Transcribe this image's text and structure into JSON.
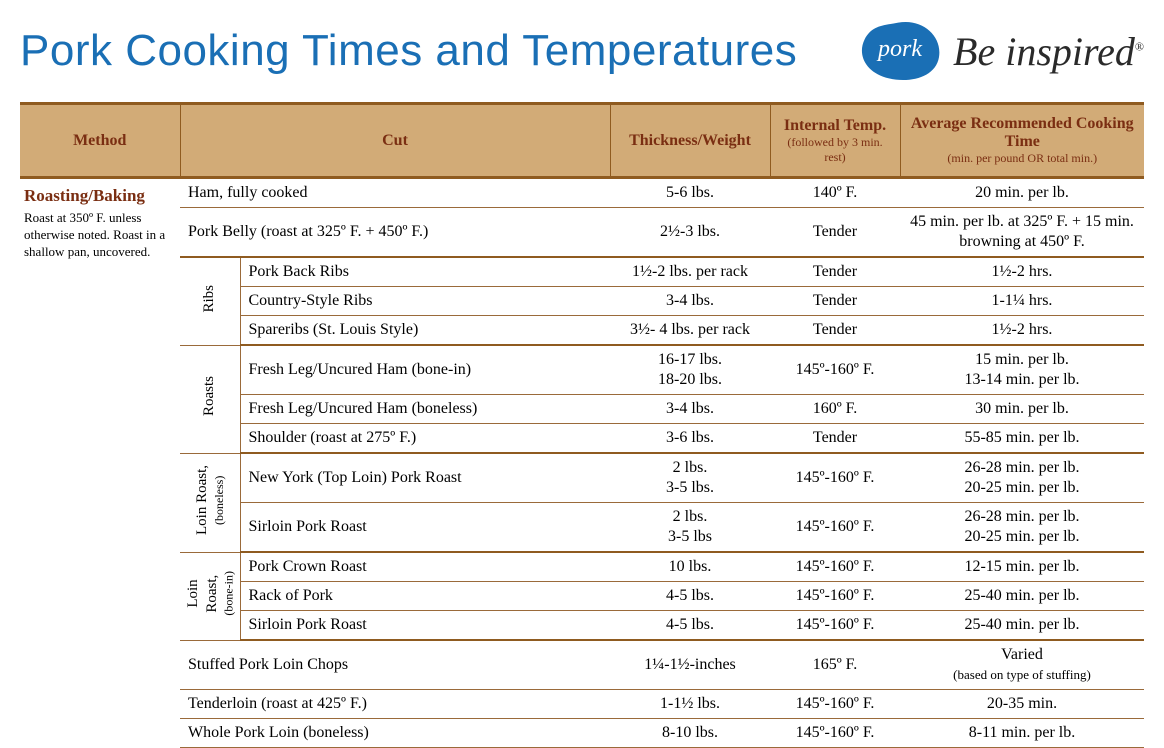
{
  "colors": {
    "title_blue": "#1a6fb5",
    "header_bg": "#d2ab77",
    "header_text": "#7a2e12",
    "rule": "#8f5b20",
    "logo_blob": "#1a6fb5",
    "be_inspired": "#2a2a2a"
  },
  "page_title": "Pork Cooking Times and Temperatures",
  "logo": {
    "blob_text": "pork",
    "tagline": "Be inspired",
    "reg": "®"
  },
  "columns": {
    "method": "Method",
    "cut": "Cut",
    "thickness": "Thickness/Weight",
    "temp": "Internal Temp.",
    "temp_sub": "(followed by 3 min. rest)",
    "time": "Average Recommended Cooking Time",
    "time_sub": "(min. per pound OR total min.)"
  },
  "method": {
    "heading": "Roasting/Baking",
    "note": "Roast at 350º F. unless otherwise noted. Roast in a shallow pan, uncovered."
  },
  "rows": [
    {
      "cut": "Ham, fully cooked",
      "span": 2,
      "thick": "5-6 lbs.",
      "temp": "140º F.",
      "time": "20 min. per lb."
    },
    {
      "cut": "Pork Belly (roast at 325º F. + 450º F.)",
      "span": 2,
      "thick": "2½-3 lbs.",
      "temp": "Tender",
      "time": "45 min. per lb. at 325º F. + 15 min. browning at 450º F.",
      "group_end": true
    },
    {
      "group": "Ribs",
      "group_rows": 3,
      "cut": "Pork Back Ribs",
      "thick": "1½-2 lbs. per rack",
      "temp": "Tender",
      "time": "1½-2 hrs."
    },
    {
      "cut": "Country-Style Ribs",
      "thick": "3-4 lbs.",
      "temp": "Tender",
      "time": "1-1¼ hrs."
    },
    {
      "cut": "Spareribs (St. Louis Style)",
      "thick": "3½- 4 lbs. per rack",
      "temp": "Tender",
      "time": "1½-2 hrs.",
      "group_end": true
    },
    {
      "group": "Roasts",
      "group_rows": 3,
      "cut": "Fresh Leg/Uncured Ham (bone-in)",
      "thick": "16-17 lbs.\n18-20 lbs.",
      "temp": "145º-160º F.",
      "time": "15 min. per lb.\n13-14 min. per lb."
    },
    {
      "cut": "Fresh Leg/Uncured Ham (boneless)",
      "thick": "3-4 lbs.",
      "temp": "160º F.",
      "time": "30 min. per lb."
    },
    {
      "cut": "Shoulder (roast at 275º F.)",
      "thick": "3-6 lbs.",
      "temp": "Tender",
      "time": "55-85 min. per lb.",
      "group_end": true
    },
    {
      "group": "Loin Roast,",
      "group_sub": "(boneless)",
      "group_rows": 2,
      "cut": "New York (Top Loin) Pork Roast",
      "thick": "2 lbs.\n3-5 lbs.",
      "temp": "145º-160º F.",
      "time": "26-28 min. per lb.\n20-25 min. per lb."
    },
    {
      "cut": "Sirloin Pork Roast",
      "thick": "2 lbs.\n3-5 lbs",
      "temp": "145º-160º F.",
      "time": "26-28 min. per lb.\n20-25 min. per lb.",
      "group_end": true
    },
    {
      "group": "Loin\nRoast,",
      "group_sub": "(bone-in)",
      "group_rows": 3,
      "cut": "Pork Crown Roast",
      "thick": "10 lbs.",
      "temp": "145º-160º F.",
      "time": "12-15 min. per lb."
    },
    {
      "cut": "Rack of Pork",
      "thick": "4-5 lbs.",
      "temp": "145º-160º F.",
      "time": "25-40 min. per lb."
    },
    {
      "cut": "Sirloin Pork Roast",
      "thick": "4-5 lbs.",
      "temp": "145º-160º F.",
      "time": "25-40 min. per lb.",
      "group_end": true
    },
    {
      "cut": "Stuffed Pork Loin Chops",
      "span": 2,
      "thick": "1¼-1½-inches",
      "temp": "165º F.",
      "time": "Varied",
      "time_sub": "(based on type of stuffing)"
    },
    {
      "cut": "Tenderloin (roast at 425º F.)",
      "span": 2,
      "thick": "1-1½ lbs.",
      "temp": "145º-160º F.",
      "time": "20-35 min."
    },
    {
      "cut": "Whole Pork Loin (boneless)",
      "span": 2,
      "thick": "8-10 lbs.",
      "temp": "145º-160º F.",
      "time": "8-11 min. per lb."
    }
  ]
}
